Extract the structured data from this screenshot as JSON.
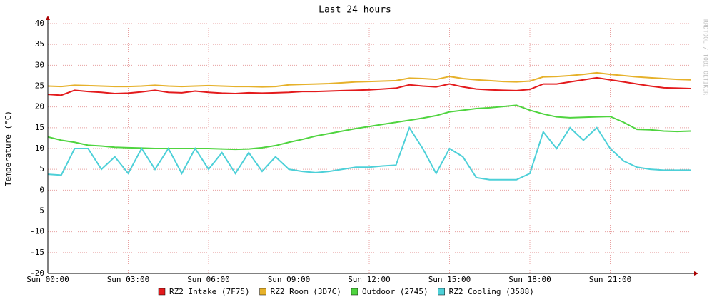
{
  "chart_data": {
    "type": "line",
    "title": "Last 24 hours",
    "y_label": "Temperature (°C)",
    "watermark": "RRDTOOL / TOBI OETIKER",
    "x": [
      0,
      0.5,
      1,
      1.5,
      2,
      2.5,
      3,
      3.5,
      4,
      4.5,
      5,
      5.5,
      6,
      6.5,
      7,
      7.5,
      8,
      8.5,
      9,
      9.5,
      10,
      10.5,
      11,
      11.5,
      12,
      12.5,
      13,
      13.5,
      14,
      14.5,
      15,
      15.5,
      16,
      16.5,
      17,
      17.5,
      18,
      18.5,
      19,
      19.5,
      20,
      20.5,
      21,
      21.5,
      22,
      22.5,
      23,
      23.5,
      24
    ],
    "series": [
      {
        "name": "RZ2 Intake (7F75)",
        "color": "#e31a1c",
        "values": [
          23,
          22.8,
          24,
          23.7,
          23.5,
          23.2,
          23.3,
          23.6,
          24,
          23.5,
          23.4,
          23.8,
          23.5,
          23.3,
          23.2,
          23.4,
          23.3,
          23.4,
          23.5,
          23.7,
          23.7,
          23.8,
          23.9,
          24,
          24.1,
          24.3,
          24.5,
          25.3,
          25,
          24.8,
          25.5,
          24.8,
          24.3,
          24.1,
          24,
          23.9,
          24.2,
          25.5,
          25.5,
          26,
          26.5,
          27,
          26.5,
          26,
          25.5,
          25,
          24.6,
          24.5,
          24.4
        ]
      },
      {
        "name": "RZ2 Room (3D7C)",
        "color": "#e6b12a",
        "values": [
          25,
          24.9,
          25.2,
          25.1,
          25,
          24.9,
          24.9,
          25,
          25.2,
          25,
          24.9,
          25,
          25.1,
          25,
          24.9,
          24.9,
          24.8,
          24.9,
          25.3,
          25.4,
          25.5,
          25.6,
          25.8,
          26,
          26.1,
          26.2,
          26.3,
          26.9,
          26.8,
          26.6,
          27.3,
          26.8,
          26.5,
          26.3,
          26.1,
          26,
          26.2,
          27.2,
          27.3,
          27.5,
          27.8,
          28.2,
          27.8,
          27.5,
          27.2,
          27,
          26.8,
          26.6,
          26.5
        ]
      },
      {
        "name": "Outdoor (2745)",
        "color": "#4fd43f",
        "values": [
          12.8,
          12,
          11.5,
          10.8,
          10.6,
          10.3,
          10.2,
          10.1,
          10,
          10,
          10,
          10,
          10,
          9.9,
          9.8,
          9.9,
          10.2,
          10.7,
          11.5,
          12.2,
          13,
          13.6,
          14.2,
          14.8,
          15.3,
          15.8,
          16.3,
          16.8,
          17.3,
          17.9,
          18.8,
          19.2,
          19.6,
          19.8,
          20.1,
          20.4,
          19.2,
          18.3,
          17.6,
          17.4,
          17.5,
          17.6,
          17.7,
          16.3,
          14.6,
          14.5,
          14.2,
          14.1,
          14.2
        ]
      },
      {
        "name": "RZ2 Cooling (3588)",
        "color": "#4dd0d8",
        "values": [
          3.8,
          3.6,
          10,
          10,
          5,
          8,
          4,
          10,
          5,
          10,
          4,
          10,
          5,
          9,
          4,
          9,
          4.5,
          8,
          5,
          4.5,
          4.2,
          4.5,
          5,
          5.5,
          5.5,
          5.8,
          6,
          15,
          10,
          4,
          10,
          8,
          3,
          2.5,
          2.5,
          2.5,
          4,
          14,
          10,
          15,
          12,
          15,
          10,
          7,
          5.5,
          5,
          4.8,
          4.8,
          4.8
        ]
      }
    ],
    "xlim": [
      0,
      24
    ],
    "xticks": [
      {
        "value": 0,
        "label": "Sun 00:00"
      },
      {
        "value": 3,
        "label": "Sun 03:00"
      },
      {
        "value": 6,
        "label": "Sun 06:00"
      },
      {
        "value": 9,
        "label": "Sun 09:00"
      },
      {
        "value": 12,
        "label": "Sun 12:00"
      },
      {
        "value": 15,
        "label": "Sun 15:00"
      },
      {
        "value": 18,
        "label": "Sun 18:00"
      },
      {
        "value": 21,
        "label": "Sun 21:00"
      }
    ],
    "ylim": [
      -20,
      40
    ],
    "yticks": [
      -20,
      -15,
      -10,
      -5,
      0,
      5,
      10,
      15,
      20,
      25,
      30,
      35,
      40
    ],
    "grid": true
  }
}
